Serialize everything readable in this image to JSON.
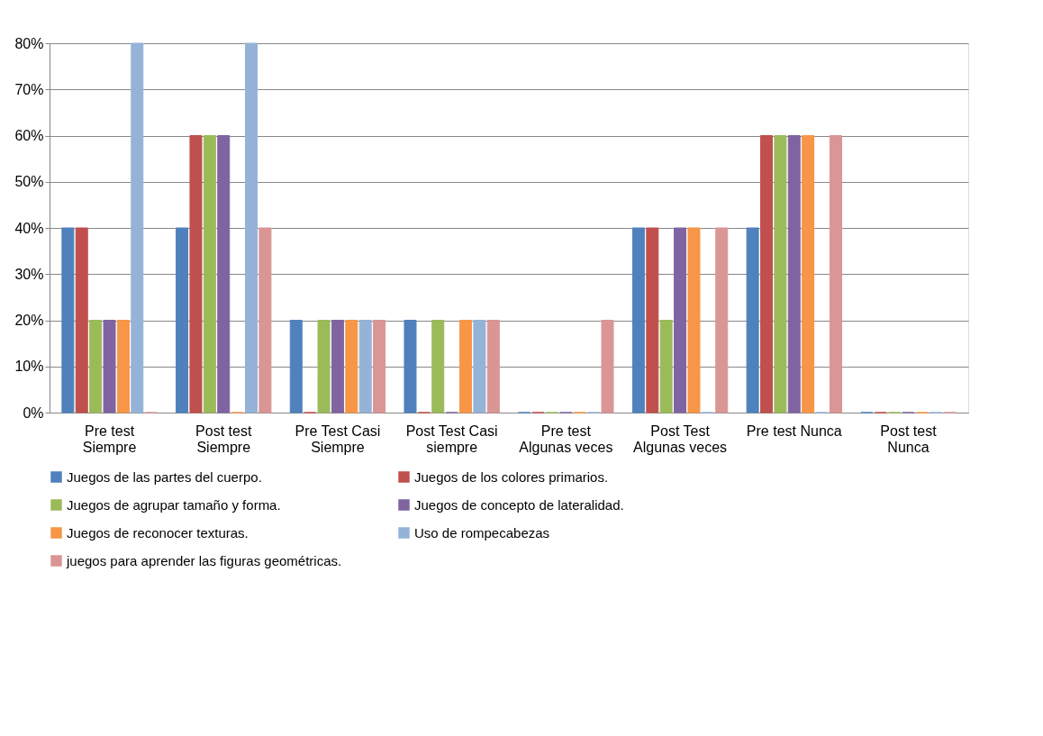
{
  "chart_data": {
    "type": "bar",
    "categories": [
      "Pre test Siempre",
      "Post test Siempre",
      "Pre Test Casi Siempre",
      "Post Test Casi siempre",
      "Pre test Algunas veces",
      "Post Test Algunas veces",
      "Pre test Nunca",
      "Post test Nunca"
    ],
    "series": [
      {
        "name": "Juegos de las partes del cuerpo.",
        "color": "#4f81bd",
        "values": [
          40,
          40,
          20,
          20,
          0,
          40,
          40,
          0
        ]
      },
      {
        "name": "Juegos de los colores primarios.",
        "color": "#c0504d",
        "values": [
          40,
          60,
          0,
          0,
          0,
          40,
          60,
          0
        ]
      },
      {
        "name": "Juegos de agrupar tamaño y forma.",
        "color": "#9bbb59",
        "values": [
          20,
          60,
          20,
          20,
          0,
          20,
          60,
          0
        ]
      },
      {
        "name": "Juegos de concepto de lateralidad.",
        "color": "#8064a2",
        "values": [
          20,
          60,
          20,
          0,
          0,
          40,
          60,
          0
        ]
      },
      {
        "name": "Juegos de reconocer texturas.",
        "color": "#f79646",
        "values": [
          20,
          0,
          20,
          20,
          0,
          40,
          60,
          0
        ]
      },
      {
        "name": "Uso de rompecabezas",
        "color": "#95b3d7",
        "values": [
          80,
          80,
          20,
          20,
          0,
          0,
          0,
          0
        ]
      },
      {
        "name": "juegos para aprender las figuras geométricas.",
        "color": "#d99694",
        "values": [
          0,
          40,
          20,
          20,
          20,
          40,
          60,
          0
        ]
      }
    ],
    "ylim": [
      0,
      80
    ],
    "yticks": [
      {
        "value": 0,
        "label": "0%"
      },
      {
        "value": 10,
        "label": "10%"
      },
      {
        "value": 20,
        "label": "20%"
      },
      {
        "value": 30,
        "label": "30%"
      },
      {
        "value": 40,
        "label": "40%"
      },
      {
        "value": 50,
        "label": "50%"
      },
      {
        "value": 60,
        "label": "60%"
      },
      {
        "value": 70,
        "label": "70%"
      },
      {
        "value": 80,
        "label": "80%"
      }
    ],
    "grid": "y",
    "legend": "bottom"
  }
}
